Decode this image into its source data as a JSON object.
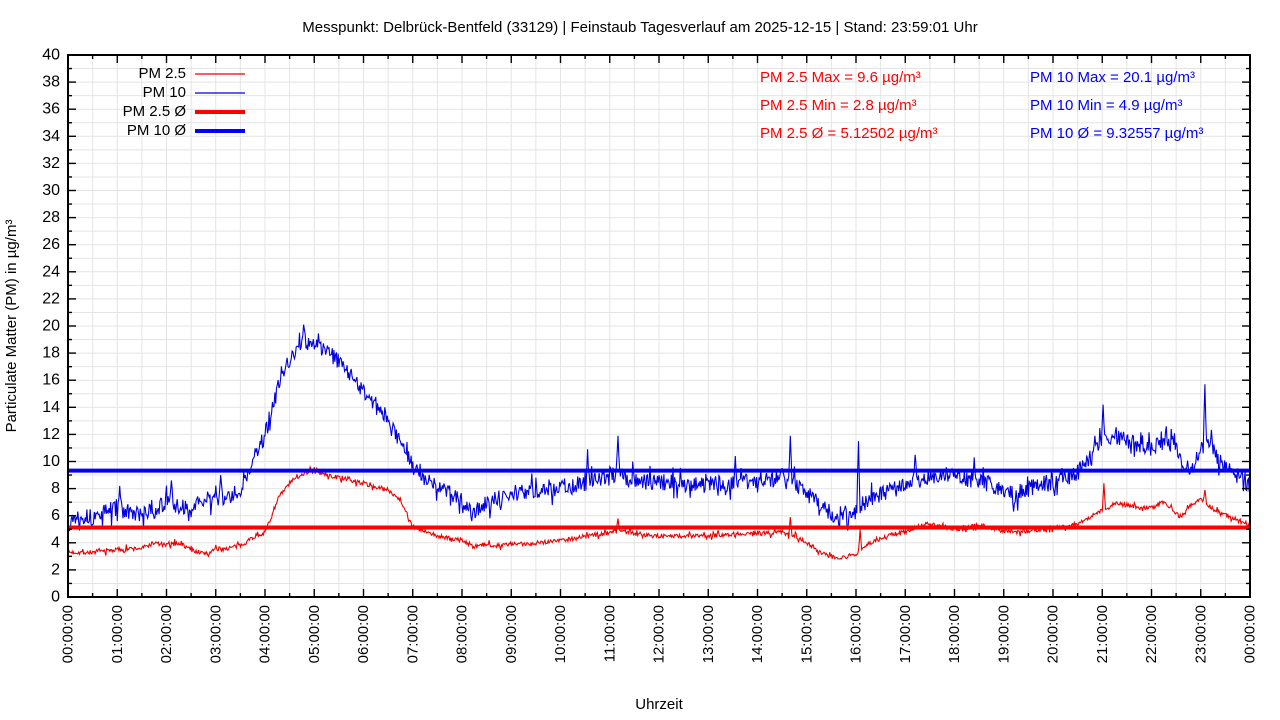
{
  "page": {
    "background": "#ffffff"
  },
  "chart_data": {
    "type": "line",
    "title": "Messpunkt: Delbrück-Bentfeld (33129) | Feinstaub Tagesverlauf am 2025-12-15 | Stand: 23:59:01 Uhr",
    "xlabel": "Uhrzeit",
    "ylabel": "Particulate Matter (PM) in µg/m³",
    "ylim": [
      0,
      40
    ],
    "xlim_hours": [
      0,
      24
    ],
    "grid": "major+minor",
    "legend_position": "top-left-inside",
    "colors": {
      "grid": "#e4e4e4",
      "axis": "#000000",
      "pm25": "#ee0000",
      "pm10": "#0000e0",
      "pm25_avg": "#ff0000",
      "pm10_avg": "#0000ff",
      "text_pm25": "#ff0000",
      "text_pm10": "#0000ff"
    },
    "yticks": [
      0,
      2,
      4,
      6,
      8,
      10,
      12,
      14,
      16,
      18,
      20,
      22,
      24,
      26,
      28,
      30,
      32,
      34,
      36,
      38,
      40
    ],
    "xticks": [
      "00:00:00",
      "01:00:00",
      "02:00:00",
      "03:00:00",
      "04:00:00",
      "05:00:00",
      "06:00:00",
      "07:00:00",
      "08:00:00",
      "09:00:00",
      "10:00:00",
      "11:00:00",
      "12:00:00",
      "13:00:00",
      "14:00:00",
      "15:00:00",
      "16:00:00",
      "17:00:00",
      "18:00:00",
      "19:00:00",
      "20:00:00",
      "21:00:00",
      "22:00:00",
      "23:00:00",
      "00:00:00"
    ],
    "legend": [
      {
        "label": "PM 2.5",
        "color": "#ee0000",
        "width": 1.2
      },
      {
        "label": "PM 10",
        "color": "#0000e0",
        "width": 1.2
      },
      {
        "label": "PM 2.5 Ø",
        "color": "#ff0000",
        "width": 4
      },
      {
        "label": "PM 10 Ø",
        "color": "#0000ff",
        "width": 4
      }
    ],
    "annotations": {
      "pm25": [
        "PM 2.5 Max = 9.6 µg/m³",
        "PM 2.5 Min = 2.8 µg/m³",
        "PM 2.5 Ø = 5.12502 µg/m³"
      ],
      "pm10": [
        "PM 10 Max = 20.1 µg/m³",
        "PM 10 Min = 4.9 µg/m³",
        "PM 10 Ø = 9.32557 µg/m³"
      ]
    },
    "avg_lines": [
      {
        "name": "PM 2.5 Ø",
        "value": 5.12502,
        "color": "#ff0000",
        "width": 4
      },
      {
        "name": "PM 10 Ø",
        "value": 9.32557,
        "color": "#0000ff",
        "width": 4
      }
    ],
    "series": [
      {
        "name": "PM 2.5",
        "color": "#ee0000",
        "width": 1.1,
        "noise": 0.17,
        "seed": 7,
        "stats": {
          "max": 9.6,
          "min": 2.8,
          "avg": 5.12502
        },
        "clamp": [
          2.8,
          9.6
        ],
        "anchors": [
          [
            0,
            3.3
          ],
          [
            0.5,
            3.3
          ],
          [
            1,
            3.5
          ],
          [
            1.5,
            3.6
          ],
          [
            1.75,
            4.0
          ],
          [
            2,
            3.8
          ],
          [
            2.25,
            4.0
          ],
          [
            2.5,
            3.5
          ],
          [
            2.75,
            3.2
          ],
          [
            3,
            3.5
          ],
          [
            3.25,
            3.6
          ],
          [
            3.5,
            3.8
          ],
          [
            3.75,
            4.4
          ],
          [
            4,
            4.8
          ],
          [
            4.1,
            5.6
          ],
          [
            4.25,
            7.2
          ],
          [
            4.5,
            8.4
          ],
          [
            4.75,
            9.1
          ],
          [
            5,
            9.3
          ],
          [
            5.25,
            9.0
          ],
          [
            5.5,
            8.8
          ],
          [
            5.75,
            8.6
          ],
          [
            6,
            8.4
          ],
          [
            6.25,
            8.1
          ],
          [
            6.5,
            7.9
          ],
          [
            6.75,
            7.2
          ],
          [
            6.9,
            6.0
          ],
          [
            7,
            5.2
          ],
          [
            7.25,
            4.8
          ],
          [
            7.5,
            4.5
          ],
          [
            7.75,
            4.3
          ],
          [
            8,
            4.2
          ],
          [
            8.25,
            3.7
          ],
          [
            8.5,
            3.9
          ],
          [
            8.75,
            3.8
          ],
          [
            9,
            3.9
          ],
          [
            9.25,
            3.9
          ],
          [
            9.5,
            4.0
          ],
          [
            9.75,
            4.1
          ],
          [
            10,
            4.2
          ],
          [
            10.25,
            4.3
          ],
          [
            10.5,
            4.5
          ],
          [
            10.75,
            4.6
          ],
          [
            11,
            4.8
          ],
          [
            11.25,
            4.9
          ],
          [
            11.5,
            4.7
          ],
          [
            11.75,
            4.6
          ],
          [
            12,
            4.5
          ],
          [
            12.5,
            4.5
          ],
          [
            13,
            4.5
          ],
          [
            13.25,
            4.6
          ],
          [
            13.75,
            4.7
          ],
          [
            14,
            4.7
          ],
          [
            14.25,
            4.7
          ],
          [
            14.5,
            4.8
          ],
          [
            14.75,
            4.5
          ],
          [
            15,
            4.0
          ],
          [
            15.25,
            3.4
          ],
          [
            15.5,
            3.0
          ],
          [
            15.75,
            2.9
          ],
          [
            16,
            3.2
          ],
          [
            16.25,
            3.9
          ],
          [
            16.5,
            4.3
          ],
          [
            16.75,
            4.6
          ],
          [
            17,
            4.8
          ],
          [
            17.25,
            5.2
          ],
          [
            17.5,
            5.4
          ],
          [
            17.75,
            5.2
          ],
          [
            18,
            5.0
          ],
          [
            18.25,
            5.1
          ],
          [
            18.5,
            5.3
          ],
          [
            18.75,
            5.1
          ],
          [
            19,
            4.9
          ],
          [
            19.25,
            4.8
          ],
          [
            19.5,
            4.9
          ],
          [
            19.75,
            5.0
          ],
          [
            20,
            5.1
          ],
          [
            20.25,
            5.2
          ],
          [
            20.5,
            5.4
          ],
          [
            20.75,
            5.9
          ],
          [
            21,
            6.4
          ],
          [
            21.25,
            6.9
          ],
          [
            21.5,
            6.8
          ],
          [
            21.75,
            6.6
          ],
          [
            22,
            6.6
          ],
          [
            22.25,
            7.0
          ],
          [
            22.45,
            6.3
          ],
          [
            22.6,
            5.9
          ],
          [
            22.8,
            6.8
          ],
          [
            23,
            7.2
          ],
          [
            23.25,
            6.5
          ],
          [
            23.4,
            6.2
          ],
          [
            23.6,
            5.9
          ],
          [
            23.8,
            5.6
          ],
          [
            24,
            5.3
          ]
        ],
        "spikes": [
          [
            2.85,
            3.0
          ],
          [
            4.92,
            9.6
          ],
          [
            8.25,
            3.6
          ],
          [
            11.17,
            5.8
          ],
          [
            14.67,
            5.9
          ],
          [
            15.67,
            2.8
          ],
          [
            16.08,
            5.0
          ],
          [
            21.03,
            8.4
          ],
          [
            23.08,
            7.9
          ]
        ]
      },
      {
        "name": "PM 10",
        "color": "#0000e0",
        "width": 1.1,
        "noise": 0.62,
        "seed": 13,
        "stats": {
          "max": 20.1,
          "min": 4.9,
          "avg": 9.32557
        },
        "clamp": [
          4.9,
          20.1
        ],
        "anchors": [
          [
            0,
            5.6
          ],
          [
            0.25,
            6.1
          ],
          [
            0.5,
            5.8
          ],
          [
            0.75,
            6.3
          ],
          [
            1,
            6.6
          ],
          [
            1.25,
            6.2
          ],
          [
            1.5,
            6.0
          ],
          [
            1.75,
            6.4
          ],
          [
            2,
            7.0
          ],
          [
            2.25,
            6.6
          ],
          [
            2.5,
            6.5
          ],
          [
            2.75,
            7.1
          ],
          [
            3,
            7.4
          ],
          [
            3.25,
            7.2
          ],
          [
            3.5,
            8.0
          ],
          [
            3.75,
            9.8
          ],
          [
            4,
            12.0
          ],
          [
            4.25,
            15.3
          ],
          [
            4.5,
            17.4
          ],
          [
            4.75,
            19.0
          ],
          [
            5,
            18.6
          ],
          [
            5.25,
            18.2
          ],
          [
            5.5,
            17.3
          ],
          [
            5.75,
            16.3
          ],
          [
            6,
            15.3
          ],
          [
            6.25,
            14.1
          ],
          [
            6.5,
            12.9
          ],
          [
            6.75,
            11.3
          ],
          [
            7,
            9.7
          ],
          [
            7.25,
            8.7
          ],
          [
            7.5,
            8.2
          ],
          [
            7.75,
            7.6
          ],
          [
            8,
            7.1
          ],
          [
            8.25,
            6.4
          ],
          [
            8.5,
            6.9
          ],
          [
            8.75,
            7.3
          ],
          [
            9,
            7.6
          ],
          [
            9.25,
            7.8
          ],
          [
            9.5,
            7.9
          ],
          [
            9.75,
            8.0
          ],
          [
            10,
            8.1
          ],
          [
            10.25,
            8.2
          ],
          [
            10.5,
            8.4
          ],
          [
            10.75,
            8.6
          ],
          [
            11,
            9.1
          ],
          [
            11.25,
            8.9
          ],
          [
            11.5,
            8.7
          ],
          [
            11.75,
            8.5
          ],
          [
            12,
            8.5
          ],
          [
            12.25,
            8.4
          ],
          [
            12.5,
            8.3
          ],
          [
            12.75,
            8.4
          ],
          [
            13,
            8.5
          ],
          [
            13.25,
            8.4
          ],
          [
            13.5,
            8.4
          ],
          [
            13.75,
            8.5
          ],
          [
            14,
            8.6
          ],
          [
            14.25,
            8.7
          ],
          [
            14.5,
            8.9
          ],
          [
            14.75,
            8.4
          ],
          [
            15,
            7.6
          ],
          [
            15.25,
            6.8
          ],
          [
            15.5,
            6.2
          ],
          [
            15.75,
            5.8
          ],
          [
            16,
            6.3
          ],
          [
            16.25,
            7.0
          ],
          [
            16.5,
            7.6
          ],
          [
            16.75,
            7.9
          ],
          [
            17,
            8.2
          ],
          [
            17.25,
            8.6
          ],
          [
            17.5,
            8.9
          ],
          [
            17.75,
            9.0
          ],
          [
            18,
            8.9
          ],
          [
            18.25,
            8.7
          ],
          [
            18.5,
            8.6
          ],
          [
            18.75,
            8.3
          ],
          [
            19,
            7.9
          ],
          [
            19.25,
            7.6
          ],
          [
            19.5,
            8.0
          ],
          [
            19.75,
            8.3
          ],
          [
            20,
            8.6
          ],
          [
            20.25,
            8.8
          ],
          [
            20.5,
            9.2
          ],
          [
            20.75,
            10.3
          ],
          [
            21,
            11.6
          ],
          [
            21.25,
            11.9
          ],
          [
            21.5,
            11.6
          ],
          [
            21.75,
            11.2
          ],
          [
            22,
            11.0
          ],
          [
            22.25,
            11.4
          ],
          [
            22.5,
            11.2
          ],
          [
            22.65,
            9.8
          ],
          [
            22.8,
            9.4
          ],
          [
            23,
            10.8
          ],
          [
            23.2,
            11.3
          ],
          [
            23.35,
            10.0
          ],
          [
            23.5,
            9.7
          ],
          [
            23.75,
            9.0
          ],
          [
            24,
            8.2
          ]
        ],
        "spikes": [
          [
            1.05,
            8.2
          ],
          [
            2.1,
            8.6
          ],
          [
            3.1,
            9.0
          ],
          [
            4.78,
            20.1
          ],
          [
            8.2,
            5.6
          ],
          [
            10.55,
            10.9
          ],
          [
            11.17,
            11.9
          ],
          [
            13.55,
            10.4
          ],
          [
            14.67,
            11.9
          ],
          [
            15.83,
            4.9
          ],
          [
            16.05,
            11.5
          ],
          [
            17.2,
            10.5
          ],
          [
            18.4,
            10.3
          ],
          [
            19.2,
            6.3
          ],
          [
            20.85,
            11.9
          ],
          [
            21.02,
            14.2
          ],
          [
            22.3,
            12.6
          ],
          [
            23.08,
            15.7
          ]
        ]
      }
    ]
  }
}
